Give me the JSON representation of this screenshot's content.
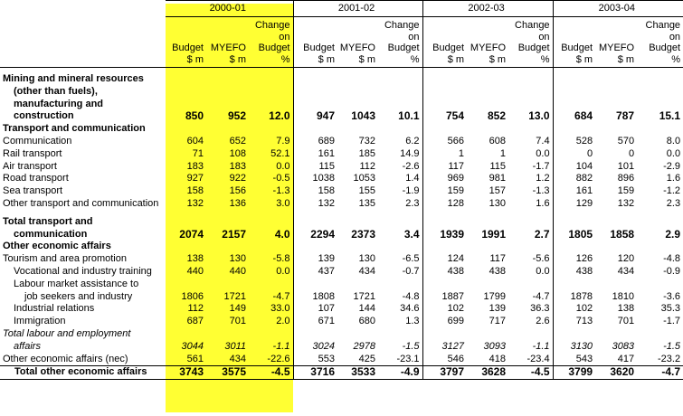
{
  "years": [
    "2000-01",
    "2001-02",
    "2002-03",
    "2003-04"
  ],
  "col_headers": {
    "budget": [
      "Budget",
      "$ m"
    ],
    "myefo": [
      "MYEFO",
      "$ m"
    ],
    "change": [
      "Change",
      "on",
      "Budget",
      "%"
    ]
  },
  "rows": [
    {
      "type": "heading_total",
      "label": [
        "Mining and mineral resources",
        "(other than fuels),",
        "manufacturing and",
        "construction"
      ],
      "values": [
        "850",
        "952",
        "12.0",
        "947",
        "1043",
        "10.1",
        "754",
        "852",
        "13.0",
        "684",
        "787",
        "15.1"
      ]
    },
    {
      "type": "section",
      "label": [
        "Transport and communication"
      ]
    },
    {
      "type": "item",
      "label": [
        "Communication"
      ],
      "values": [
        "604",
        "652",
        "7.9",
        "689",
        "732",
        "6.2",
        "566",
        "608",
        "7.4",
        "528",
        "570",
        "8.0"
      ]
    },
    {
      "type": "item",
      "label": [
        "Rail transport"
      ],
      "values": [
        "71",
        "108",
        "52.1",
        "161",
        "185",
        "14.9",
        "1",
        "1",
        "0.0",
        "0",
        "0",
        "0.0"
      ]
    },
    {
      "type": "item",
      "label": [
        "Air transport"
      ],
      "values": [
        "183",
        "183",
        "0.0",
        "115",
        "112",
        "-2.6",
        "117",
        "115",
        "-1.7",
        "104",
        "101",
        "-2.9"
      ]
    },
    {
      "type": "item",
      "label": [
        "Road transport"
      ],
      "values": [
        "927",
        "922",
        "-0.5",
        "1038",
        "1053",
        "1.4",
        "969",
        "981",
        "1.2",
        "882",
        "896",
        "1.6"
      ]
    },
    {
      "type": "item",
      "label": [
        "Sea transport"
      ],
      "values": [
        "158",
        "156",
        "-1.3",
        "158",
        "155",
        "-1.9",
        "159",
        "157",
        "-1.3",
        "161",
        "159",
        "-1.2"
      ]
    },
    {
      "type": "item",
      "label": [
        "Other transport and communication"
      ],
      "values": [
        "132",
        "136",
        "3.0",
        "132",
        "135",
        "2.3",
        "128",
        "130",
        "1.6",
        "129",
        "132",
        "2.3"
      ]
    },
    {
      "type": "heading_total",
      "label": [
        "Total transport and",
        "communication"
      ],
      "values": [
        "2074",
        "2157",
        "4.0",
        "2294",
        "2373",
        "3.4",
        "1939",
        "1991",
        "2.7",
        "1805",
        "1858",
        "2.9"
      ]
    },
    {
      "type": "section",
      "label": [
        "Other economic affairs"
      ]
    },
    {
      "type": "item",
      "label": [
        "Tourism and area promotion"
      ],
      "values": [
        "138",
        "130",
        "-5.8",
        "139",
        "130",
        "-6.5",
        "124",
        "117",
        "-5.6",
        "126",
        "120",
        "-4.8"
      ]
    },
    {
      "type": "item_ind",
      "label": [
        "Vocational and industry training"
      ],
      "values": [
        "440",
        "440",
        "0.0",
        "437",
        "434",
        "-0.7",
        "438",
        "438",
        "0.0",
        "438",
        "434",
        "-0.9"
      ]
    },
    {
      "type": "item_ind",
      "label": [
        "Labour market assistance to",
        "job seekers and industry"
      ],
      "values": [
        "1806",
        "1721",
        "-4.7",
        "1808",
        "1721",
        "-4.8",
        "1887",
        "1799",
        "-4.7",
        "1878",
        "1810",
        "-3.6"
      ]
    },
    {
      "type": "item_ind",
      "label": [
        "Industrial relations"
      ],
      "values": [
        "112",
        "149",
        "33.0",
        "107",
        "144",
        "34.6",
        "102",
        "139",
        "36.3",
        "102",
        "138",
        "35.3"
      ]
    },
    {
      "type": "item_ind",
      "label": [
        "Immigration"
      ],
      "values": [
        "687",
        "701",
        "2.0",
        "671",
        "680",
        "1.3",
        "699",
        "717",
        "2.6",
        "713",
        "701",
        "-1.7"
      ]
    },
    {
      "type": "italic",
      "label": [
        "Total labour and employment",
        "affairs"
      ],
      "values": [
        "3044",
        "3011",
        "-1.1",
        "3024",
        "2978",
        "-1.5",
        "3127",
        "3093",
        "-1.1",
        "3130",
        "3083",
        "-1.5"
      ]
    },
    {
      "type": "item",
      "label": [
        "Other economic affairs (nec)"
      ],
      "values": [
        "561",
        "434",
        "-22.6",
        "553",
        "425",
        "-23.1",
        "546",
        "418",
        "-23.4",
        "543",
        "417",
        "-23.2"
      ]
    },
    {
      "type": "grand_total",
      "label": [
        "Total other economic affairs"
      ],
      "values": [
        "3743",
        "3575",
        "-4.5",
        "3716",
        "3533",
        "-4.9",
        "3797",
        "3628",
        "-4.5",
        "3799",
        "3620",
        "-4.7"
      ]
    }
  ]
}
